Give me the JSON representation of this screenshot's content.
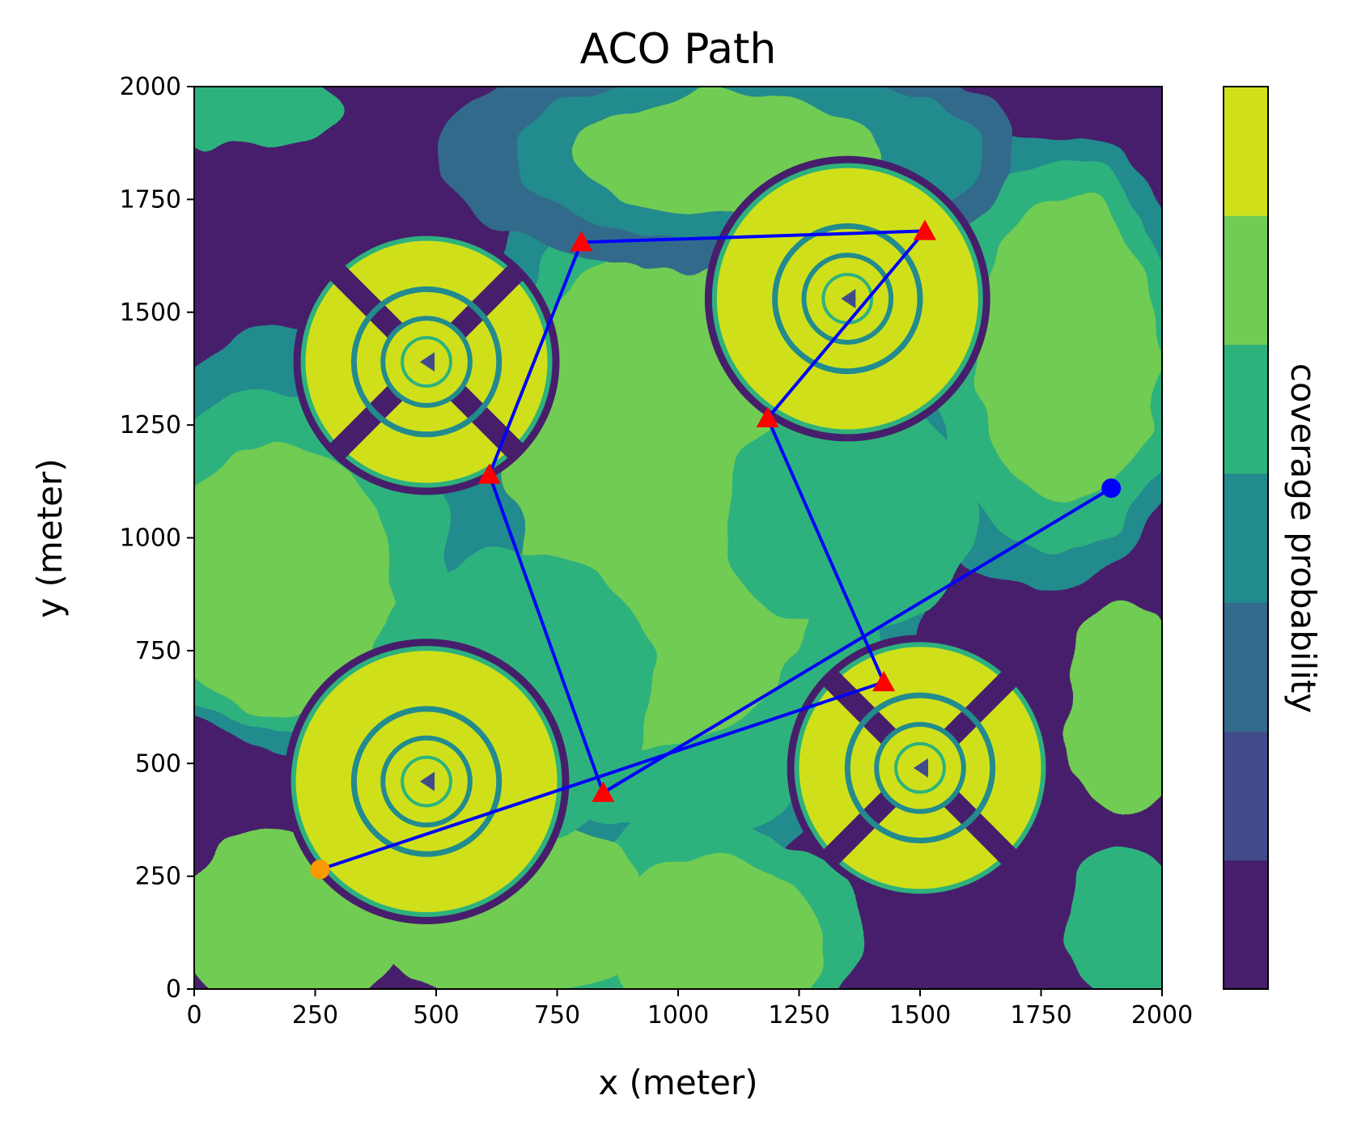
{
  "chart_data": {
    "type": "contour-with-path",
    "title": "ACO Path",
    "xlabel": "x (meter)",
    "ylabel": "y (meter)",
    "colorbar_label": "coverage probability",
    "xlim": [
      0,
      2000
    ],
    "ylim": [
      0,
      2000
    ],
    "xticks": [
      "0",
      "250",
      "500",
      "750",
      "1000",
      "1250",
      "1500",
      "1750",
      "2000"
    ],
    "yticks": [
      "0",
      "250",
      "500",
      "750",
      "1000",
      "1250",
      "1500",
      "1750",
      "2000"
    ],
    "colorbar_levels": [
      "#471e6b",
      "#424b8a",
      "#336b8c",
      "#228b8d",
      "#2db27d",
      "#71cc53",
      "#cfe01b"
    ],
    "path": {
      "color": "#0000ff",
      "points": [
        {
          "x": 260,
          "y": 265
        },
        {
          "x": 1425,
          "y": 680
        },
        {
          "x": 1185,
          "y": 1265
        },
        {
          "x": 1510,
          "y": 1680
        },
        {
          "x": 800,
          "y": 1655
        },
        {
          "x": 610,
          "y": 1140
        },
        {
          "x": 845,
          "y": 435
        },
        {
          "x": 1895,
          "y": 1110
        }
      ]
    },
    "start_point": {
      "x": 260,
      "y": 265,
      "color": "#ff9900"
    },
    "end_point": {
      "x": 1895,
      "y": 1110,
      "color": "#0000ff"
    },
    "waypoints": {
      "marker": "triangle",
      "color": "#ff0000",
      "points": [
        {
          "x": 800,
          "y": 1655
        },
        {
          "x": 1510,
          "y": 1680
        },
        {
          "x": 610,
          "y": 1140
        },
        {
          "x": 1185,
          "y": 1265
        },
        {
          "x": 1425,
          "y": 680
        },
        {
          "x": 845,
          "y": 435
        }
      ]
    },
    "coverage_centers": [
      {
        "x": 480,
        "y": 1390,
        "variant": "lobed"
      },
      {
        "x": 1350,
        "y": 1530,
        "variant": "round"
      },
      {
        "x": 480,
        "y": 460,
        "variant": "round"
      },
      {
        "x": 1500,
        "y": 490,
        "variant": "lobed"
      }
    ]
  }
}
